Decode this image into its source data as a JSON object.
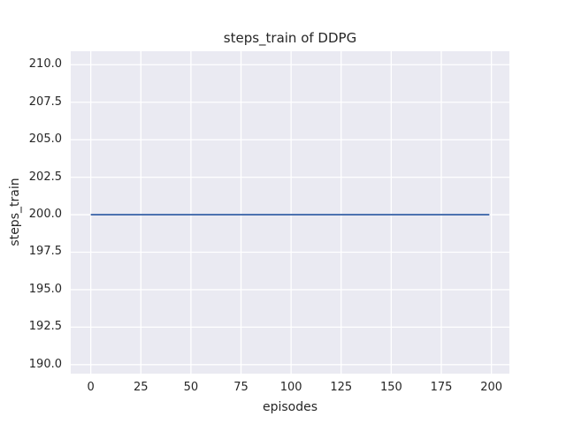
{
  "chart_data": {
    "type": "line",
    "title": "steps_train of DDPG",
    "xlabel": "episodes",
    "ylabel": "steps_train",
    "xlim": [
      -10.0,
      209.0
    ],
    "ylim": [
      189.4,
      210.9
    ],
    "xticks": [
      0,
      25,
      50,
      75,
      100,
      125,
      150,
      175,
      200
    ],
    "xtick_labels": [
      "0",
      "25",
      "50",
      "75",
      "100",
      "125",
      "150",
      "175",
      "200"
    ],
    "yticks": [
      190.0,
      192.5,
      195.0,
      197.5,
      200.0,
      202.5,
      205.0,
      207.5,
      210.0
    ],
    "ytick_labels": [
      "190.0",
      "192.5",
      "195.0",
      "197.5",
      "200.0",
      "202.5",
      "205.0",
      "207.5",
      "210.0"
    ],
    "grid": true,
    "legend": null,
    "colors": {
      "plot_background": "#EAEAF2",
      "grid_line": "#FFFFFF",
      "data_line": "#4C72B0",
      "text": "#262626"
    },
    "series": [
      {
        "name": "steps_train",
        "x": [
          0,
          199
        ],
        "y": [
          200,
          200
        ],
        "constant_value": 200
      }
    ]
  }
}
